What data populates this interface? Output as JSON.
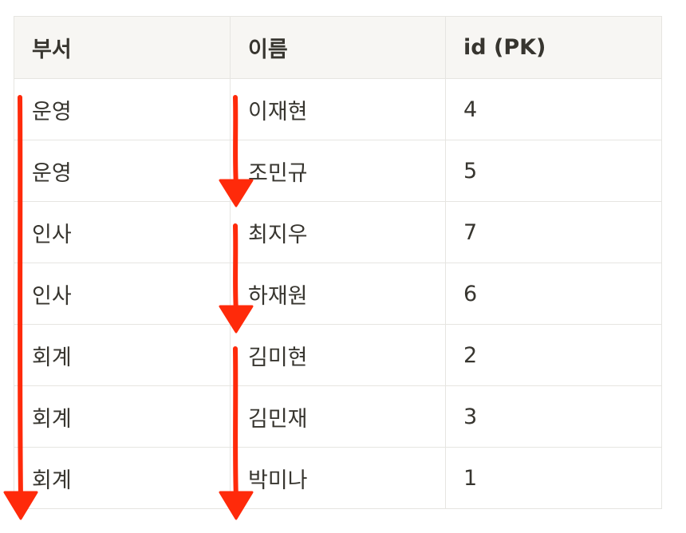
{
  "table": {
    "headers": [
      "부서",
      "이름",
      "id (PK)"
    ],
    "rows": [
      [
        "운영",
        "이재현",
        "4"
      ],
      [
        "운영",
        "조민규",
        "5"
      ],
      [
        "인사",
        "최지우",
        "7"
      ],
      [
        "인사",
        "하재원",
        "6"
      ],
      [
        "회계",
        "김미현",
        "2"
      ],
      [
        "회계",
        "김민재",
        "3"
      ],
      [
        "회계",
        "박미나",
        "1"
      ]
    ]
  },
  "annotations": {
    "arrow_color": "#ff2a0a",
    "arrows": [
      {
        "name": "sort-arrow-dept-all-rows",
        "column": "부서",
        "from_row": 1,
        "to_row": 7
      },
      {
        "name": "sort-arrow-name-ops-group",
        "column": "이름",
        "from_row": 1,
        "to_row": 2
      },
      {
        "name": "sort-arrow-name-hr-group",
        "column": "이름",
        "from_row": 3,
        "to_row": 4
      },
      {
        "name": "sort-arrow-name-acct-group",
        "column": "이름",
        "from_row": 5,
        "to_row": 7
      }
    ]
  }
}
